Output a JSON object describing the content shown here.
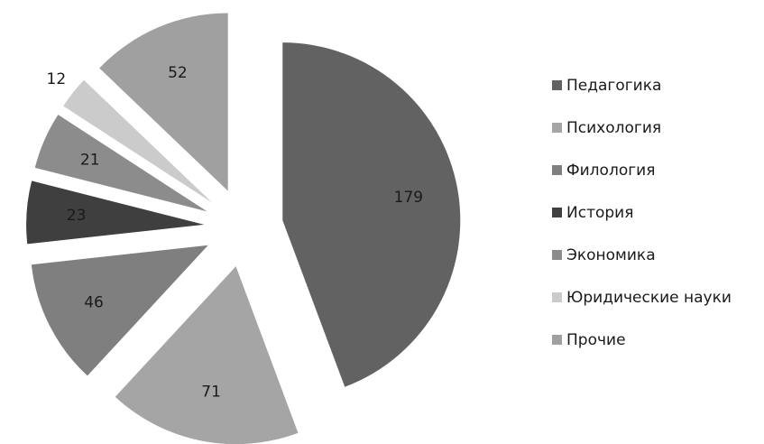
{
  "chart_data": {
    "type": "pie",
    "categories": [
      "Педагогика",
      "Психология",
      "Филология",
      "История",
      "Экономика",
      "Юридические науки",
      "Прочие"
    ],
    "values": [
      179,
      71,
      46,
      23,
      21,
      12,
      52
    ],
    "colors": [
      "#626262",
      "#a5a5a5",
      "#7f7f7f",
      "#3f3f3f",
      "#8c8c8c",
      "#cbcbcb",
      "#a0a0a0"
    ],
    "legend": "right"
  }
}
